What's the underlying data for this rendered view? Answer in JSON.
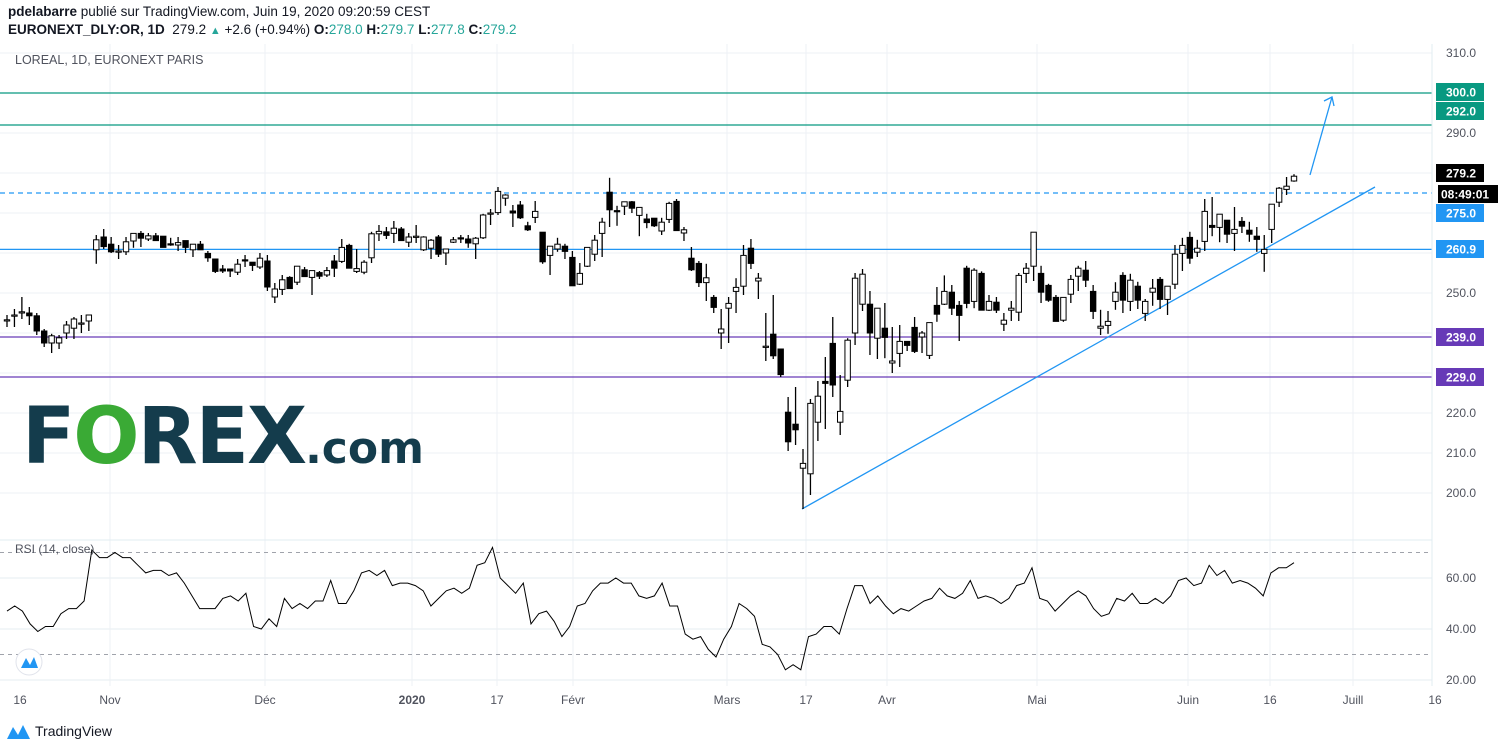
{
  "header": {
    "author": "pdelabarre",
    "published": "publié sur TradingView.com, Juin 19, 2020 09:20:59 CEST",
    "symbol": "EURONEXT_DLY:OR, 1D",
    "last": "279.2",
    "change": "+2.6 (+0.94%)",
    "o_label": "O:",
    "o": "278.0",
    "h_label": "H:",
    "h": "279.7",
    "l_label": "L:",
    "l": "277.8",
    "c_label": "C:",
    "c": "279.2"
  },
  "pane_title": "LOREAL, 1D, EURONEXT PARIS",
  "rsi_title": "RSI (14, close)",
  "logo": {
    "forex_f": "F",
    "forex_o": "O",
    "forex_rest": "REX",
    "forex_com": ".com",
    "tradingview": "TradingView"
  },
  "colors": {
    "up": "#ffffff",
    "down": "#000000",
    "teal_level": "#089981",
    "blue_level": "#2196f3",
    "purple_level": "#673ab7",
    "trendline": "#2196f3",
    "grid": "#e1ecf2"
  },
  "chart_data": [
    {
      "type": "candlestick",
      "title": "LOREAL, 1D, EURONEXT PARIS",
      "x_ticks": [
        "16",
        "Nov",
        "Déc",
        "2020",
        "17",
        "Févr",
        "Mars",
        "17",
        "Avr",
        "Mai",
        "Juin",
        "16",
        "Juill",
        "16"
      ],
      "y_ticks": [
        "310.0",
        "290.0",
        "250.0",
        "220.0",
        "210.0",
        "200.0"
      ],
      "ylim": [
        190,
        315
      ],
      "grid": true,
      "levels": [
        {
          "value": 300.0,
          "label": "300.0",
          "color": "#089981",
          "style": "solid"
        },
        {
          "value": 292.0,
          "label": "292.0",
          "color": "#089981",
          "style": "solid"
        },
        {
          "value": 275.0,
          "label": "275.0",
          "color": "#2196f3",
          "style": "dashed"
        },
        {
          "value": 260.9,
          "label": "260.9",
          "color": "#2196f3",
          "style": "solid"
        },
        {
          "value": 239.0,
          "label": "239.0",
          "color": "#673ab7",
          "style": "solid"
        },
        {
          "value": 229.0,
          "label": "229.0",
          "color": "#673ab7",
          "style": "solid"
        }
      ],
      "last_price": {
        "label": "279.2",
        "countdown": "08:49:01"
      },
      "trendline": {
        "from": [
          "17 Mars",
          196.0
        ],
        "to": [
          "Juill",
          276.5
        ]
      },
      "projection_arrow": {
        "from": 279.5,
        "to": 300.0
      },
      "ohlc": [
        [
          243,
          244.5,
          241.5,
          243.3
        ],
        [
          244.3,
          246,
          241.5,
          244.5
        ],
        [
          245.3,
          249,
          243.5,
          245.3
        ],
        [
          245,
          246.5,
          242,
          244.3
        ],
        [
          244.3,
          245,
          239.5,
          240.5
        ],
        [
          240.5,
          241,
          236.5,
          237.5
        ],
        [
          237.5,
          239.8,
          235,
          239.3
        ],
        [
          237.5,
          239.5,
          236,
          238.8
        ],
        [
          240,
          243,
          238.5,
          242
        ],
        [
          241.2,
          244,
          238.5,
          243.5
        ],
        [
          242.5,
          244.5,
          240,
          242.5
        ],
        [
          243,
          244.5,
          240.5,
          244.5
        ],
        [
          260.8,
          264.5,
          257.3,
          263.3
        ],
        [
          264,
          266,
          261,
          261.6
        ],
        [
          262.2,
          264,
          260,
          260.3
        ],
        [
          260.5,
          262,
          258.5,
          260.5
        ],
        [
          260.3,
          264,
          259.5,
          262.8
        ],
        [
          263,
          265,
          261.3,
          264.9
        ],
        [
          264.9,
          265.5,
          261.5,
          263.7
        ],
        [
          263.5,
          265,
          263,
          264.3
        ],
        [
          264.3,
          265,
          263,
          263.1
        ],
        [
          264.2,
          264.2,
          261.4,
          261.4
        ],
        [
          262.3,
          263.8,
          261.8,
          262
        ],
        [
          262,
          264,
          260.5,
          262.6
        ],
        [
          263.1,
          263.1,
          260,
          261.4
        ],
        [
          260.8,
          262.2,
          259,
          262.2
        ],
        [
          262.2,
          263,
          260.8,
          260.8
        ],
        [
          259.9,
          260.5,
          257.8,
          258.8
        ],
        [
          258.5,
          258.5,
          255,
          255.4
        ],
        [
          256,
          257,
          255,
          255.5
        ],
        [
          256,
          256,
          254,
          255.5
        ],
        [
          255.2,
          258.5,
          254.5,
          257.2
        ],
        [
          258.3,
          259.5,
          256.5,
          258
        ],
        [
          257.7,
          257.7,
          255.5,
          256.9
        ],
        [
          256.5,
          260,
          256,
          258.7
        ],
        [
          258,
          259.5,
          250.5,
          251.5
        ],
        [
          249,
          252.5,
          247.5,
          251
        ],
        [
          250.9,
          254.5,
          249.5,
          253.3
        ],
        [
          253.9,
          254.2,
          251,
          251.1
        ],
        [
          252.7,
          256.7,
          252,
          256.7
        ],
        [
          255.8,
          256.5,
          254.1,
          254.1
        ],
        [
          253.9,
          255.6,
          249.5,
          255.6
        ],
        [
          255.1,
          255.5,
          253.5,
          254.2
        ],
        [
          254.5,
          256.5,
          254,
          255.6
        ],
        [
          258,
          259.5,
          254,
          256.2
        ],
        [
          257.9,
          263.5,
          257.5,
          261.4
        ],
        [
          261.9,
          262.3,
          256.2,
          256.2
        ],
        [
          255.4,
          261,
          255,
          256.1
        ],
        [
          255.2,
          258.2,
          254.7,
          257.7
        ],
        [
          258.8,
          265.3,
          257.5,
          264.8
        ],
        [
          264.8,
          267,
          263,
          265.4
        ],
        [
          265.3,
          266.5,
          263.5,
          264.4
        ],
        [
          264.9,
          268,
          262.5,
          266.2
        ],
        [
          266,
          266.5,
          263.1,
          263.1
        ],
        [
          262.7,
          265,
          261.5,
          264
        ],
        [
          264.2,
          267,
          262.5,
          264.2
        ],
        [
          260.8,
          264.2,
          260.5,
          264
        ],
        [
          261.2,
          263.5,
          258.5,
          263.2
        ],
        [
          264,
          264.5,
          259,
          259.7
        ],
        [
          260,
          261,
          257,
          261
        ],
        [
          262.7,
          264,
          262.5,
          263.3
        ],
        [
          263.8,
          264.5,
          262.5,
          263.6
        ],
        [
          263.5,
          264.5,
          261.3,
          262.5
        ],
        [
          262.3,
          264,
          258.5,
          263.7
        ],
        [
          263.8,
          269.8,
          263.5,
          269.5
        ],
        [
          270,
          271,
          267,
          270
        ],
        [
          270.1,
          276.5,
          269.5,
          275.4
        ],
        [
          273.7,
          274.7,
          271.8,
          274.5
        ],
        [
          270.5,
          272,
          266.5,
          270
        ],
        [
          272,
          273,
          268.5,
          268.8
        ],
        [
          266.8,
          267.8,
          265.5,
          265.8
        ],
        [
          268.9,
          273,
          267.5,
          270.4
        ],
        [
          265.2,
          265.2,
          257.3,
          257.8
        ],
        [
          259.4,
          261.7,
          254.5,
          261.7
        ],
        [
          261,
          263.8,
          260.3,
          262.2
        ],
        [
          261.7,
          262.3,
          258.5,
          260.4
        ],
        [
          258.9,
          260.5,
          251.8,
          251.8
        ],
        [
          252.2,
          257.5,
          252,
          254.9
        ],
        [
          256.7,
          261.4,
          256.5,
          261.4
        ],
        [
          259.7,
          264.5,
          258,
          263.2
        ],
        [
          264.9,
          268.8,
          259,
          267.7
        ],
        [
          275.2,
          278.8,
          266.5,
          270.8
        ],
        [
          270.6,
          271.8,
          266.8,
          270.4
        ],
        [
          271.7,
          272.8,
          269.5,
          272.8
        ],
        [
          272.8,
          273,
          270,
          271.2
        ],
        [
          269.4,
          271.4,
          264.2,
          271.4
        ],
        [
          268.5,
          269.8,
          266.2,
          267.6
        ],
        [
          268.7,
          268.7,
          266.5,
          266.8
        ],
        [
          265.5,
          268.8,
          264.5,
          267.7
        ],
        [
          268.4,
          272.8,
          267.5,
          272.4
        ],
        [
          272.9,
          273.5,
          265.6,
          265.6
        ],
        [
          265,
          266.5,
          263,
          265.8
        ],
        [
          258.7,
          261.5,
          255.5,
          255.8
        ],
        [
          257.4,
          258,
          251.5,
          252.6
        ],
        [
          252.6,
          257.3,
          248,
          253.8
        ],
        [
          248.9,
          249.5,
          245,
          246.4
        ],
        [
          240,
          246,
          236,
          241
        ],
        [
          246.2,
          249,
          237.5,
          247.4
        ],
        [
          250.4,
          253.7,
          245,
          251.4
        ],
        [
          251.7,
          262,
          249.5,
          259.4
        ],
        [
          261.2,
          263.5,
          256,
          257.4
        ],
        [
          253,
          255,
          248.5,
          253.7
        ],
        [
          236.7,
          245,
          233,
          236.7
        ],
        [
          239.7,
          249.5,
          233.5,
          234.3
        ],
        [
          236,
          236,
          229,
          229.6
        ],
        [
          220.2,
          224,
          210.5,
          212.8
        ],
        [
          217.2,
          226.5,
          212,
          215.8
        ],
        [
          206.2,
          211,
          196,
          207.4
        ],
        [
          204.8,
          223.5,
          199.5,
          222.4
        ],
        [
          217.7,
          228,
          213,
          224.2
        ],
        [
          227.9,
          234,
          216,
          227.4
        ],
        [
          237.4,
          244,
          224,
          227
        ],
        [
          217.7,
          229.5,
          214.5,
          220.4
        ],
        [
          228.2,
          238.7,
          226.5,
          238.2
        ],
        [
          240,
          255,
          237,
          253.7
        ],
        [
          247.2,
          256,
          245.5,
          254.7
        ],
        [
          247.2,
          250.5,
          234.5,
          240
        ],
        [
          238.7,
          246.2,
          233.5,
          246.2
        ],
        [
          241.2,
          247.5,
          233.7,
          238.9
        ],
        [
          232.5,
          241.5,
          230,
          233
        ],
        [
          234.9,
          242,
          231.5,
          237.9
        ],
        [
          237.9,
          238,
          235.5,
          236.9
        ],
        [
          241.4,
          244,
          235,
          235.4
        ],
        [
          239,
          240.5,
          235,
          240
        ],
        [
          234.4,
          242.6,
          233.5,
          242.6
        ],
        [
          246.9,
          251.5,
          242.8,
          244.7
        ],
        [
          247.2,
          254.4,
          247,
          250.4
        ],
        [
          250.2,
          252,
          244.5,
          246.2
        ],
        [
          246.9,
          248,
          238,
          244.4
        ],
        [
          256.2,
          256.8,
          246.2,
          247.4
        ],
        [
          247.9,
          256.2,
          246.2,
          255.7
        ],
        [
          254.9,
          255.4,
          245.7,
          245.7
        ],
        [
          245.7,
          249.5,
          245.5,
          247.9
        ],
        [
          247.7,
          249,
          245,
          245.7
        ],
        [
          242.2,
          245,
          240.5,
          243.2
        ],
        [
          245.7,
          248,
          243,
          246.2
        ],
        [
          245.2,
          255,
          243,
          254.4
        ],
        [
          254.9,
          257.5,
          252.5,
          256.2
        ],
        [
          256.7,
          265.2,
          253,
          265.2
        ],
        [
          254.9,
          256.8,
          247.5,
          250.2
        ],
        [
          251.9,
          252.3,
          247.8,
          248.2
        ],
        [
          248.9,
          249.5,
          242.9,
          242.9
        ],
        [
          243.2,
          248.9,
          242.8,
          248.9
        ],
        [
          249.7,
          254.5,
          247.5,
          253.4
        ],
        [
          254.2,
          256.8,
          250.5,
          256.2
        ],
        [
          255.7,
          258,
          251.5,
          253.2
        ],
        [
          250.4,
          252,
          243.5,
          245.4
        ],
        [
          241.2,
          245.8,
          239.5,
          241.7
        ],
        [
          241.9,
          245.5,
          239.8,
          242.9
        ],
        [
          247.9,
          252.7,
          245.8,
          250.2
        ],
        [
          254.4,
          255.2,
          245,
          248.2
        ],
        [
          247.9,
          254.8,
          245.5,
          253.2
        ],
        [
          251.7,
          252.8,
          246,
          248.2
        ],
        [
          244.9,
          248.5,
          243,
          247.9
        ],
        [
          250.2,
          253.5,
          246.8,
          251.2
        ],
        [
          253.4,
          254,
          246,
          248.4
        ],
        [
          248.4,
          251.7,
          244.5,
          251.7
        ],
        [
          252.2,
          262,
          251,
          259.7
        ],
        [
          259.9,
          263.8,
          255.5,
          261.9
        ],
        [
          263.9,
          265.3,
          257.3,
          258.7
        ],
        [
          260.2,
          263.3,
          259,
          261.2
        ],
        [
          262.9,
          273.5,
          260.5,
          270.4
        ],
        [
          266.9,
          274,
          264.2,
          266.4
        ],
        [
          266.4,
          269.7,
          262.7,
          269.7
        ],
        [
          268.2,
          268.2,
          262.5,
          264.7
        ],
        [
          264.9,
          271.5,
          260.5,
          265.9
        ],
        [
          267.9,
          269,
          265,
          266.7
        ],
        [
          265.7,
          267.8,
          262.8,
          264.7
        ],
        [
          264.2,
          266.5,
          260.3,
          263.4
        ],
        [
          259.9,
          264.5,
          255.3,
          260.9
        ],
        [
          265.9,
          272.2,
          262.5,
          272.2
        ],
        [
          272.7,
          276.5,
          271.5,
          276.2
        ],
        [
          275.9,
          279,
          274.5,
          276.7
        ],
        [
          278.0,
          279.7,
          277.8,
          279.2
        ]
      ]
    },
    {
      "type": "line",
      "title": "RSI (14, close)",
      "y_ticks": [
        "60.00",
        "40.00",
        "20.00"
      ],
      "ylim": [
        18,
        74
      ],
      "bands": [
        70,
        30
      ],
      "values": [
        47,
        49,
        47,
        42,
        39,
        41,
        41,
        46,
        48,
        48,
        51,
        71,
        68,
        68,
        70,
        68,
        68,
        65,
        62,
        63,
        63,
        61,
        62,
        58,
        53,
        48,
        48,
        48,
        52,
        53,
        51,
        54,
        41,
        40,
        44,
        41,
        52,
        48,
        50,
        48,
        51,
        51,
        59,
        50,
        50,
        55,
        62,
        63,
        61,
        63,
        57,
        58,
        58,
        57,
        55,
        49,
        52,
        55,
        56,
        54,
        56,
        65,
        66,
        72,
        60,
        57,
        54,
        58,
        42,
        46,
        47,
        43,
        37,
        41,
        49,
        50,
        55,
        58,
        58,
        60,
        58,
        58,
        53,
        52,
        53,
        58,
        49,
        49,
        38,
        36,
        37,
        32,
        29,
        36,
        41,
        50,
        48,
        45,
        34,
        33,
        30,
        24,
        26,
        24,
        37,
        38,
        41,
        41,
        38,
        48,
        57,
        57,
        50,
        53,
        49,
        46,
        48,
        47,
        49,
        51,
        52,
        56,
        53,
        52,
        54,
        59,
        52,
        53,
        52,
        50,
        52,
        57,
        58,
        64,
        52,
        51,
        47,
        50,
        53,
        55,
        53,
        48,
        45,
        46,
        52,
        51,
        54,
        50,
        50,
        52,
        50,
        53,
        59,
        60,
        57,
        58,
        65,
        61,
        63,
        58,
        59,
        58,
        56,
        53,
        62,
        64,
        64,
        66
      ]
    }
  ]
}
